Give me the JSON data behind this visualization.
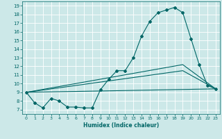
{
  "title": "",
  "xlabel": "Humidex (Indice chaleur)",
  "xlim": [
    -0.5,
    23.5
  ],
  "ylim": [
    6.5,
    19.5
  ],
  "xticks": [
    0,
    1,
    2,
    3,
    4,
    5,
    6,
    7,
    8,
    9,
    10,
    11,
    12,
    13,
    14,
    15,
    16,
    17,
    18,
    19,
    20,
    21,
    22,
    23
  ],
  "yticks": [
    7,
    8,
    9,
    10,
    11,
    12,
    13,
    14,
    15,
    16,
    17,
    18,
    19
  ],
  "bg_color": "#cce8e8",
  "line_color": "#006666",
  "grid_color": "#ffffff",
  "series": [
    {
      "x": [
        0,
        1,
        2,
        3,
        4,
        5,
        6,
        7,
        8,
        9,
        10,
        11,
        12,
        13,
        14,
        15,
        16,
        17,
        18,
        19,
        20,
        21,
        22,
        23
      ],
      "y": [
        9.0,
        7.8,
        7.2,
        8.3,
        8.0,
        7.3,
        7.3,
        7.2,
        7.2,
        9.3,
        10.5,
        11.5,
        11.5,
        13.0,
        15.5,
        17.2,
        18.2,
        18.5,
        18.8,
        18.2,
        15.2,
        12.2,
        9.8,
        9.4
      ],
      "marker": "D",
      "markersize": 2.0,
      "linewidth": 0.8
    },
    {
      "x": [
        0,
        23
      ],
      "y": [
        9.0,
        9.4
      ],
      "marker": null,
      "markersize": 0,
      "linewidth": 0.8
    },
    {
      "x": [
        0,
        19,
        23
      ],
      "y": [
        9.0,
        11.5,
        9.4
      ],
      "marker": null,
      "markersize": 0,
      "linewidth": 0.8
    },
    {
      "x": [
        0,
        19,
        23
      ],
      "y": [
        9.0,
        12.2,
        9.4
      ],
      "marker": null,
      "markersize": 0,
      "linewidth": 0.8
    }
  ]
}
